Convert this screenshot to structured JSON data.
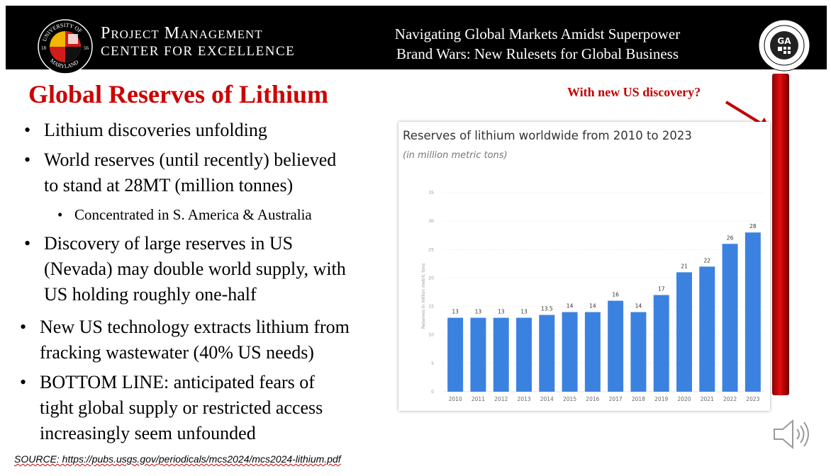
{
  "header": {
    "seal_text": [
      "UNIVERSITY OF",
      "MARYLAND",
      "18",
      "56"
    ],
    "org_line1": "Project Management",
    "org_line2": "CENTER FOR EXCELLENCE",
    "title_line1": "Navigating Global Markets Amidst Superpower",
    "title_line2": "Brand Wars: New Rulesets for Global Business",
    "emblem_text": "GA"
  },
  "slide_title": "Global Reserves of Lithium",
  "bullets": [
    {
      "lines": [
        "Lithium discoveries unfolding"
      ],
      "level": 1
    },
    {
      "lines": [
        "World reserves (until recently) believed",
        "to stand at 28MT (million tonnes)"
      ],
      "level": 1
    },
    {
      "lines": [
        "Concentrated in S. America & Australia"
      ],
      "level": 2
    },
    {
      "lines": [
        "Discovery of large reserves in US",
        "(Nevada) may double world supply, with",
        "US holding roughly one-half"
      ],
      "level": 1
    },
    {
      "lines": [
        "New US technology extracts lithium from",
        "fracking wastewater (40% US needs)"
      ],
      "level": 1
    },
    {
      "lines": [
        "BOTTOM LINE: anticipated fears of",
        "tight global supply or restricted access",
        "increasingly seem unfounded"
      ],
      "level": 1
    }
  ],
  "source": "SOURCE: https://pubs.usgs.gov/periodicals/mcs2024/mcs2024-lithium.pdf",
  "annotation": "With new US discovery?",
  "colors": {
    "bar": "#3b82e0",
    "title_red": "#cc0000",
    "annotation_red": "#c00000"
  },
  "chart_data": {
    "type": "bar",
    "title": "Reserves of lithium worldwide from 2010 to 2023",
    "subtitle": "(in million metric tons)",
    "ylabel": "Reserves in million metric tons",
    "xlabel": "",
    "categories": [
      "2010",
      "2011",
      "2012",
      "2013",
      "2014",
      "2015",
      "2016",
      "2017",
      "2018",
      "2019",
      "2020",
      "2021",
      "2022",
      "2023"
    ],
    "values": [
      13,
      13,
      13,
      13,
      13.5,
      14,
      14,
      16,
      14,
      17,
      21,
      22,
      26,
      28
    ],
    "data_labels": [
      "13",
      "13",
      "13",
      "13",
      "13.5",
      "14",
      "14",
      "16",
      "14",
      "17",
      "21",
      "22",
      "26",
      "28"
    ],
    "ylim": [
      0,
      35
    ],
    "yticks": [
      0,
      5,
      10,
      15,
      20,
      25,
      30,
      35
    ],
    "grid": true,
    "legend": "none"
  }
}
